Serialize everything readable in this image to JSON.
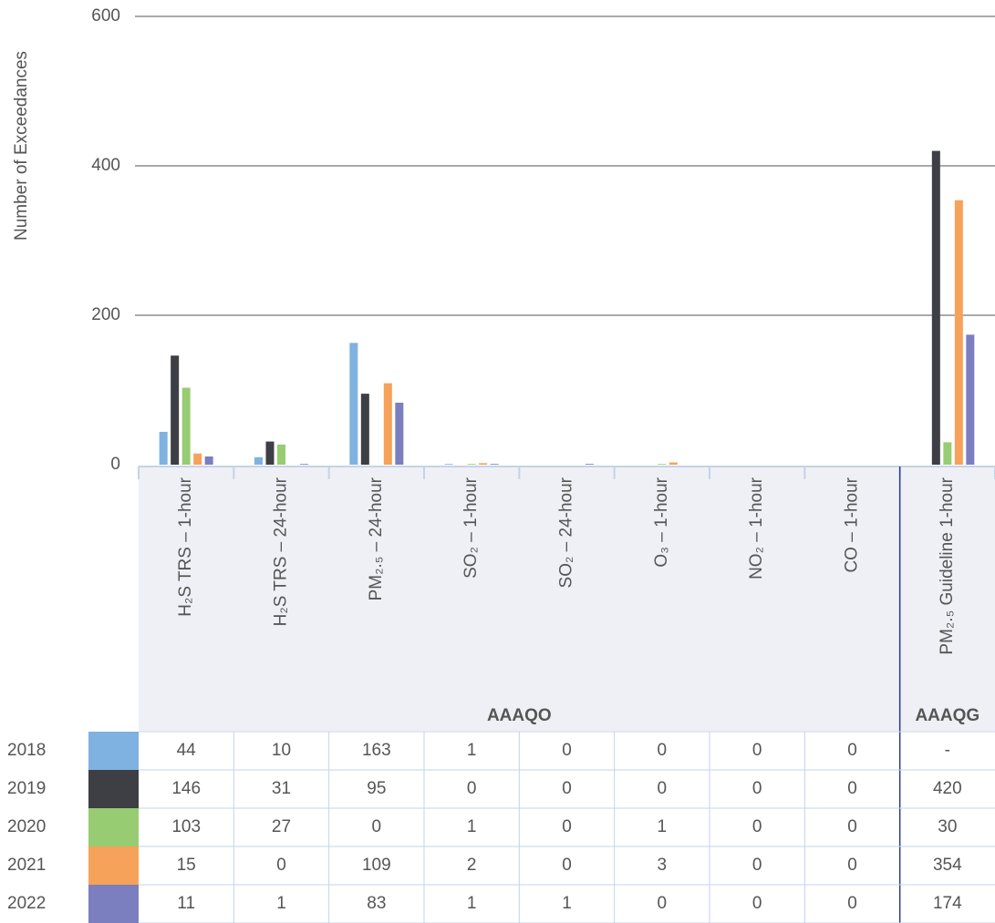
{
  "chart_data": {
    "type": "bar",
    "y_label": "Number of Exceedances",
    "categories": [
      "H₂S TRS – 1-hour",
      "H₂S TRS – 24-hour",
      "PM₂.₅ – 24-hour",
      "SO₂ – 1-hour",
      "SO₂ – 24-hour",
      "O₃ – 1-hour",
      "NO₂ – 1-hour",
      "CO – 1-hour",
      "PM₂.₅ Guideline 1-hour"
    ],
    "groups": [
      {
        "label": "AAAQO",
        "span": 8
      },
      {
        "label": "AAAQG",
        "span": 1
      }
    ],
    "series": [
      {
        "name": "2018",
        "color": "#7fb2e0",
        "values": [
          44,
          10,
          163,
          1,
          0,
          0,
          0,
          0,
          null
        ],
        "value_labels": [
          "44",
          "10",
          "163",
          "1",
          "0",
          "0",
          "0",
          "0",
          "-"
        ]
      },
      {
        "name": "2019",
        "color": "#3d3f44",
        "values": [
          146,
          31,
          95,
          0,
          0,
          0,
          0,
          0,
          420
        ]
      },
      {
        "name": "2020",
        "color": "#98cc72",
        "values": [
          103,
          27,
          0,
          1,
          0,
          1,
          0,
          0,
          30
        ]
      },
      {
        "name": "2021",
        "color": "#f6a25a",
        "values": [
          15,
          0,
          109,
          2,
          0,
          3,
          0,
          0,
          354
        ]
      },
      {
        "name": "2022",
        "color": "#7b7fbf",
        "values": [
          11,
          1,
          83,
          1,
          1,
          0,
          0,
          0,
          174
        ]
      }
    ],
    "ylim": [
      0,
      600
    ],
    "yticks": [
      0,
      200,
      400,
      600
    ],
    "grid": true
  }
}
